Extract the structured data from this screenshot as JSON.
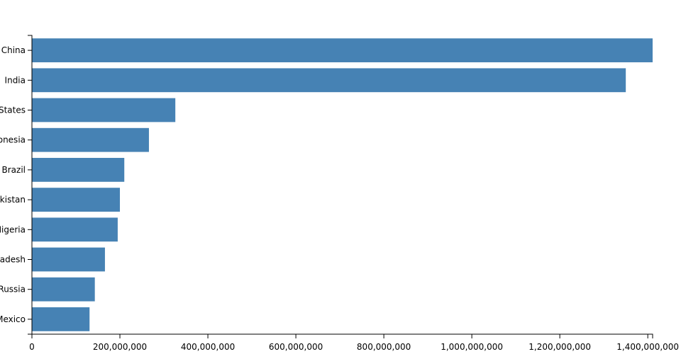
{
  "chart_data": {
    "type": "bar",
    "orientation": "horizontal",
    "categories": [
      "China",
      "India",
      "United States",
      "Indonesia",
      "Brazil",
      "Pakistan",
      "Nigeria",
      "Bangladesh",
      "Russia",
      "Mexico"
    ],
    "values": [
      1411000000,
      1350000000,
      326000000,
      266000000,
      210000000,
      200000000,
      195000000,
      166000000,
      143000000,
      131000000
    ],
    "color": "#4682b4",
    "xlim": [
      0,
      1411000000
    ],
    "xticks": [
      0,
      {
        "value": 200000000,
        "label": "200,000,000"
      },
      {
        "value": 400000000,
        "label": "400,000,000"
      },
      {
        "value": 600000000,
        "label": "600,000,000"
      },
      {
        "value": 800000000,
        "label": "800,000,000"
      },
      {
        "value": 1000000000,
        "label": "1,000,000,000"
      },
      {
        "value": 1200000000,
        "label": "1,200,000,000"
      },
      {
        "value": 1400000000,
        "label": "1,400,000,000"
      }
    ],
    "grid": false
  }
}
